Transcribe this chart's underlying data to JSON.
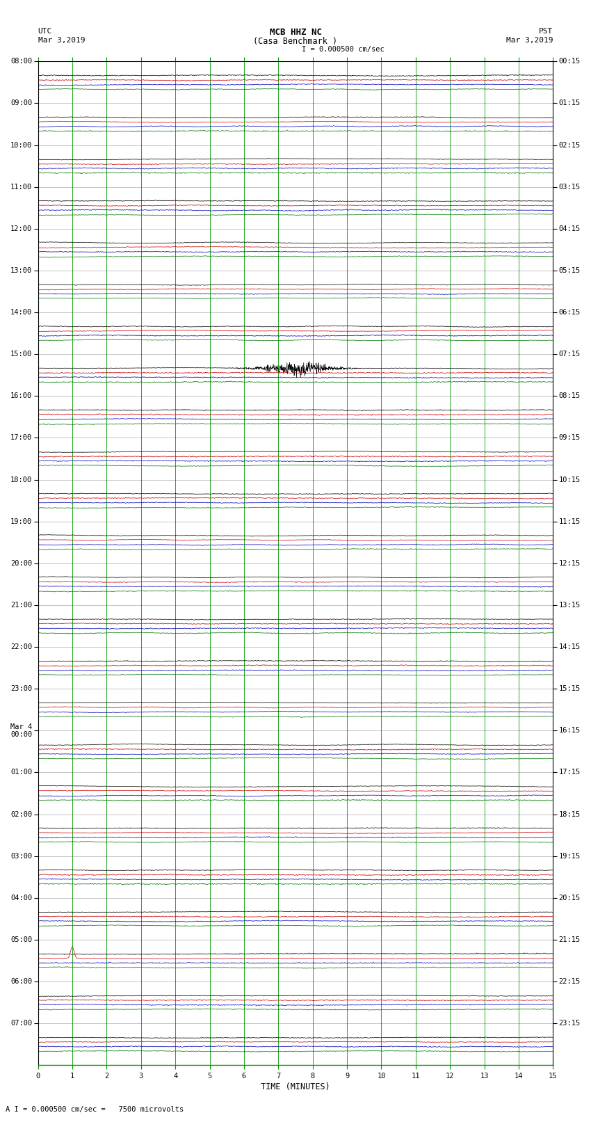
{
  "title_line1": "MCB HHZ NC",
  "title_line2": "(Casa Benchmark )",
  "scale_text": "I = 0.000500 cm/sec",
  "bottom_scale_text": "A I = 0.000500 cm/sec =   7500 microvolts",
  "left_label": "UTC",
  "left_date": "Mar 3,2019",
  "right_label": "PST",
  "right_date": "Mar 3,2019",
  "xlabel": "TIME (MINUTES)",
  "xmin": 0,
  "xmax": 15,
  "bg_color": "#ffffff",
  "trace_colors": [
    "#000000",
    "#cc0000",
    "#0000bb",
    "#007700"
  ],
  "grid_color": "#009900",
  "num_traces_per_row": 4,
  "noise_amplitude": 0.1,
  "utc_labels": [
    "08:00",
    "09:00",
    "10:00",
    "11:00",
    "12:00",
    "13:00",
    "14:00",
    "15:00",
    "16:00",
    "17:00",
    "18:00",
    "19:00",
    "20:00",
    "21:00",
    "22:00",
    "23:00",
    "Mar 4\n00:00",
    "01:00",
    "02:00",
    "03:00",
    "04:00",
    "05:00",
    "06:00",
    "07:00"
  ],
  "pst_labels": [
    "00:15",
    "01:15",
    "02:15",
    "03:15",
    "04:15",
    "05:15",
    "06:15",
    "07:15",
    "08:15",
    "09:15",
    "10:15",
    "11:15",
    "12:15",
    "13:15",
    "14:15",
    "15:15",
    "16:15",
    "17:15",
    "18:15",
    "19:15",
    "20:15",
    "21:15",
    "22:15",
    "23:15"
  ],
  "num_hours": 24,
  "num_traces_per_hour": 4,
  "special_row_28_trace0": true,
  "special_row_57_trace1": true
}
